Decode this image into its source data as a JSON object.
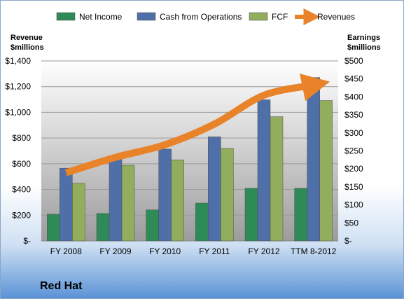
{
  "chart_data": {
    "type": "bar",
    "categories": [
      "FY 2008",
      "FY 2009",
      "FY 2010",
      "FY 2011",
      "FY 2012",
      "TTM 8-2012"
    ],
    "left_axis": {
      "label_line1": "Revenue",
      "label_line2": "$millions",
      "range": [
        0,
        1400
      ],
      "ticks": [
        "$-",
        "$200",
        "$400",
        "$600",
        "$800",
        "$1,000",
        "$1,200",
        "$1,400"
      ]
    },
    "right_axis": {
      "label_line1": "Earnings",
      "label_line2": "$millions",
      "range": [
        0,
        500
      ],
      "ticks": [
        "$-",
        "$50",
        "$100",
        "$150",
        "$200",
        "$250",
        "$300",
        "$350",
        "$400",
        "$450",
        "$500"
      ]
    },
    "series": [
      {
        "name": "Net Income",
        "axis": "right",
        "color": "#2e8b57",
        "values": [
          74,
          76,
          86,
          105,
          146,
          146
        ]
      },
      {
        "name": "Cash from Operations",
        "axis": "right",
        "color": "#4f6fa8",
        "values": [
          202,
          234,
          255,
          289,
          392,
          454
        ]
      },
      {
        "name": "FCF",
        "axis": "right",
        "color": "#92ad5c",
        "values": [
          160,
          210,
          225,
          257,
          345,
          390
        ]
      },
      {
        "name": "Revenues",
        "axis": "left",
        "type": "line",
        "color": "#e8832a",
        "values": [
          530,
          650,
          748,
          909,
          1133,
          1212
        ]
      }
    ],
    "grid": true,
    "legend_position": "top"
  },
  "company_name": "Red Hat"
}
